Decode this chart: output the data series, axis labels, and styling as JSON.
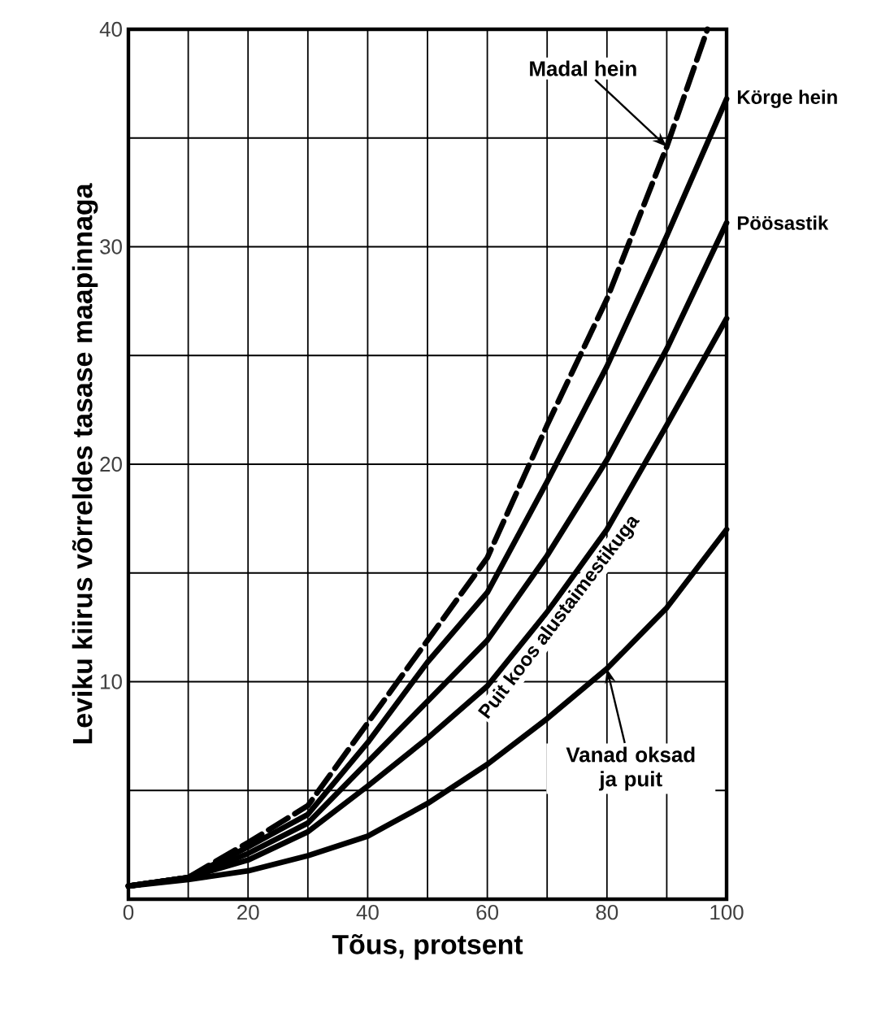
{
  "chart_data": {
    "type": "line",
    "xlabel": "Tõus, protsent",
    "ylabel": "Leviku kiirus võrreldes tasase maapinnaga",
    "xlim": [
      0,
      100
    ],
    "ylim": [
      0,
      40
    ],
    "xticks": [
      0,
      {
        "value": 10,
        "label": null
      },
      20,
      {
        "value": 30,
        "label": null
      },
      40,
      {
        "value": 50,
        "label": null
      },
      60,
      {
        "value": 70,
        "label": null
      },
      80,
      {
        "value": 90,
        "label": null
      },
      100
    ],
    "yticks": [
      {
        "value": 0,
        "label": null
      },
      {
        "value": 5,
        "label": null
      },
      10,
      {
        "value": 15,
        "label": null
      },
      20,
      {
        "value": 25,
        "label": null
      },
      30,
      {
        "value": 35,
        "label": null
      },
      40
    ],
    "grid": true,
    "marker": "none",
    "color": "#000000",
    "series": [
      {
        "name": "Madal hein",
        "line_style": "dashed",
        "x": [
          0,
          10,
          20,
          30,
          40,
          50,
          60,
          70,
          80,
          90,
          96.8
        ],
        "values": [
          0.6,
          1.0,
          2.6,
          4.3,
          8.1,
          11.9,
          15.7,
          21.8,
          27.6,
          34.6,
          40
        ]
      },
      {
        "name": "Körge hein",
        "line_style": "solid",
        "x": [
          0,
          10,
          20,
          30,
          40,
          50,
          60,
          70,
          80,
          90,
          100
        ],
        "values": [
          0.6,
          1.0,
          2.4,
          3.9,
          7.2,
          10.9,
          14.1,
          19.2,
          24.5,
          30.5,
          36.8
        ]
      },
      {
        "name": "Pöösastik",
        "line_style": "solid",
        "x": [
          0,
          10,
          20,
          30,
          40,
          50,
          60,
          70,
          80,
          90,
          100
        ],
        "values": [
          0.6,
          1.0,
          2.1,
          3.5,
          6.3,
          9.1,
          11.9,
          15.8,
          20.2,
          25.3,
          31.1
        ]
      },
      {
        "name": "Puit koos alustaimestikuga",
        "line_style": "solid",
        "x": [
          0,
          10,
          20,
          30,
          40,
          50,
          60,
          70,
          80,
          90,
          100
        ],
        "values": [
          0.6,
          1.0,
          1.8,
          3.1,
          5.2,
          7.4,
          9.8,
          13.2,
          17.0,
          21.8,
          26.7
        ]
      },
      {
        "name": "Vanad oksad ja puit",
        "line_style": "solid",
        "x": [
          0,
          10,
          20,
          30,
          40,
          50,
          60,
          70,
          80,
          90,
          100
        ],
        "values": [
          0.6,
          0.9,
          1.3,
          2.0,
          2.9,
          4.4,
          6.2,
          8.3,
          10.6,
          13.4,
          17.0
        ]
      }
    ]
  }
}
